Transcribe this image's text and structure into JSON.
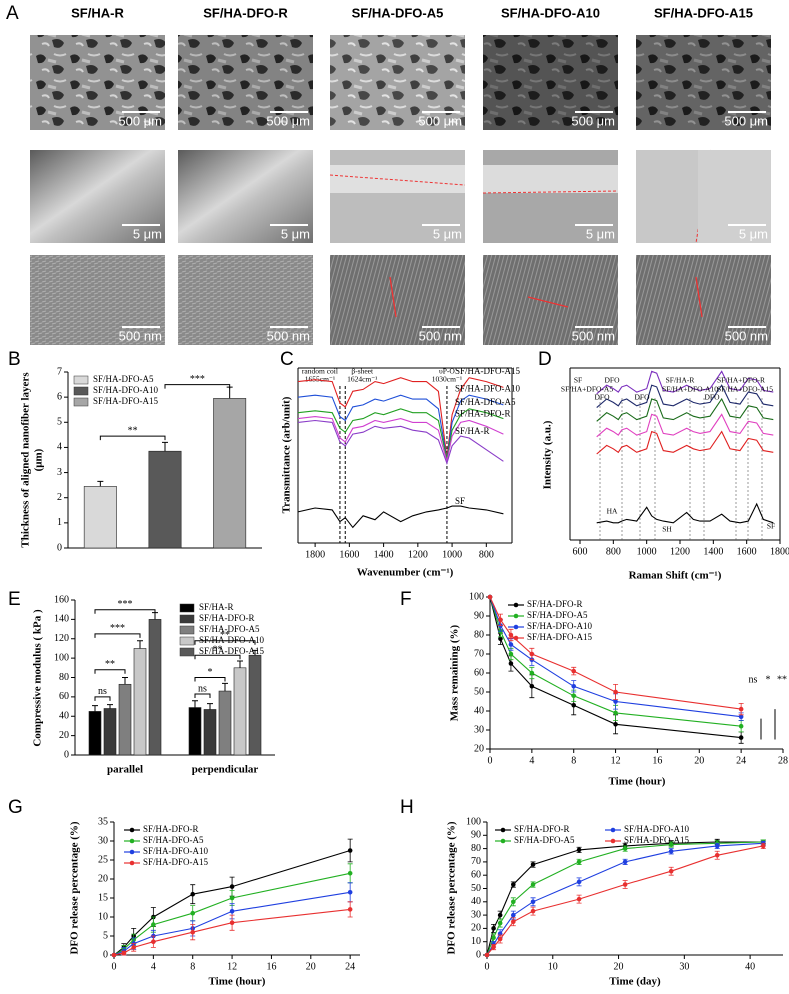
{
  "panel_a": {
    "label": "A",
    "columns": [
      "SF/HA-R",
      "SF/HA-DFO-R",
      "SF/HA-DFO-A5",
      "SF/HA-DFO-A10",
      "SF/HA-DFO-A15"
    ],
    "scale_bars": [
      [
        "500 μm",
        "500 μm",
        "500 μm",
        "500 μm",
        "500 μm"
      ],
      [
        "5 μm",
        "5 μm",
        "5 μm",
        "5 μm",
        "5 μm"
      ],
      [
        "500 nm",
        "500 nm",
        "500 nm",
        "500 nm",
        "500 nm"
      ]
    ]
  },
  "chart_data": [
    {
      "type": "bar",
      "panel_label": "B",
      "y_label": [
        "Thickness of aligned nanofiber layers",
        "(μm)"
      ],
      "categories": [
        "SF/HA-DFO-A5",
        "SF/HA-DFO-A10",
        "SF/HA-DFO-A15"
      ],
      "values": [
        2.45,
        3.85,
        5.95
      ],
      "errors": [
        0.2,
        0.35,
        0.45
      ],
      "colors": [
        "#d9d9d9",
        "#595959",
        "#a6a6a6"
      ],
      "ylim": [
        0,
        7
      ],
      "yticks": [
        0,
        1,
        2,
        3,
        4,
        5,
        6,
        7
      ],
      "legend": "upper left",
      "annotations": [
        "**",
        "***"
      ]
    },
    {
      "type": "line",
      "panel_label": "C",
      "x_label": "Wavenumber (cm⁻¹)",
      "y_label": "Transmittance (arb/unit)",
      "x": [
        1900,
        1800,
        1700,
        1655,
        1624,
        1580,
        1520,
        1450,
        1400,
        1300,
        1230,
        1150,
        1080,
        1030,
        1000,
        950,
        900,
        800,
        700
      ],
      "xlim": [
        1900,
        650
      ],
      "xticks": [
        1800,
        1600,
        1400,
        1200,
        1000,
        800
      ],
      "ylim": [
        0,
        9
      ],
      "legend": "inline",
      "reference_lines": [
        {
          "x": 1655,
          "lines": [
            "random coil",
            "1655cm⁻¹"
          ]
        },
        {
          "x": 1624,
          "lines": [
            "β-sheet",
            "1624cm⁻¹"
          ]
        },
        {
          "x": 1030,
          "lines": [
            "υP-O",
            "1030cm⁻¹"
          ]
        }
      ],
      "series": [
        {
          "name": "SF/HA-DFO-A15",
          "color": "#e02020",
          "values": [
            8.3,
            8.4,
            8.3,
            7.2,
            7.0,
            7.8,
            7.9,
            8.3,
            8.2,
            8.5,
            8.3,
            8.3,
            7.8,
            4.4,
            6.6,
            7.9,
            8.5,
            8.3,
            8.0
          ]
        },
        {
          "name": "SF/HA-DFO-A10",
          "color": "#1f4fd8",
          "values": [
            7.5,
            7.6,
            7.5,
            6.5,
            6.3,
            7.0,
            7.1,
            7.4,
            7.3,
            7.6,
            7.4,
            7.4,
            6.9,
            4.3,
            6.2,
            7.3,
            7.6,
            7.4,
            7.1
          ]
        },
        {
          "name": "SF/HA-DFO-A5",
          "color": "#22a022",
          "values": [
            6.7,
            6.8,
            6.7,
            5.9,
            5.7,
            6.3,
            6.4,
            6.7,
            6.6,
            6.9,
            6.7,
            6.7,
            6.3,
            4.3,
            5.8,
            6.6,
            6.9,
            6.7,
            6.4
          ]
        },
        {
          "name": "SF/HA-DFO-R",
          "color": "#d040d0",
          "values": [
            6.4,
            6.5,
            6.4,
            5.4,
            5.2,
            5.9,
            6.0,
            6.3,
            6.2,
            6.4,
            6.2,
            6.2,
            5.8,
            4.2,
            5.5,
            6.2,
            6.3,
            6.0,
            5.6
          ]
        },
        {
          "name": "SF/HA-R",
          "color": "#8a3cc8",
          "values": [
            6.2,
            6.3,
            6.2,
            5.2,
            5.0,
            5.6,
            5.7,
            6.0,
            5.9,
            6.0,
            5.8,
            5.7,
            5.3,
            4.1,
            5.0,
            5.5,
            5.4,
            4.8,
            4.2
          ]
        },
        {
          "name": "SF",
          "color": "#000000",
          "values": [
            1.6,
            1.8,
            1.7,
            1.1,
            1.3,
            0.8,
            1.4,
            1.2,
            1.6,
            1.1,
            1.4,
            1.6,
            1.7,
            1.8,
            1.9,
            1.9,
            1.8,
            1.7,
            1.5
          ]
        }
      ]
    },
    {
      "type": "line",
      "panel_label": "D",
      "x_label": "Raman Shift (cm⁻¹)",
      "y_label": "Intensity (a.u.)",
      "x": [
        700,
        760,
        800,
        830,
        850,
        880,
        940,
        1000,
        1030,
        1060,
        1100,
        1160,
        1240,
        1280,
        1320,
        1380,
        1450,
        1500,
        1560,
        1610,
        1660,
        1700,
        1760
      ],
      "xlim": [
        540,
        1800
      ],
      "xticks": [
        600,
        800,
        1000,
        1200,
        1400,
        1600,
        1800
      ],
      "ylim": [
        0,
        10
      ],
      "annotations": [
        "SF",
        "DFO",
        "SF/HA+DFO-A5",
        "SF/HA-R",
        "SF/HA+DFO-A10",
        "SF/HA+DFO-R",
        "SF/HA+DFO-A15",
        "DFO",
        "DFO",
        "DFO",
        "HA",
        "SH",
        "SF"
      ],
      "series": [
        {
          "color": "#7b2fbe",
          "values": [
            8.5,
            9.0,
            8.8,
            8.6,
            8.9,
            9.0,
            8.6,
            8.8,
            9.8,
            9.7,
            8.7,
            8.6,
            9.0,
            8.8,
            8.7,
            8.8,
            9.8,
            8.8,
            8.7,
            9.4,
            9.3,
            8.7,
            8.6
          ]
        },
        {
          "color": "#1f2a6b",
          "values": [
            7.7,
            8.2,
            8.0,
            7.8,
            8.1,
            8.2,
            7.8,
            8.0,
            9.0,
            8.9,
            7.9,
            7.8,
            8.2,
            8.0,
            7.9,
            8.0,
            9.0,
            8.0,
            7.9,
            8.6,
            8.5,
            7.9,
            7.8
          ]
        },
        {
          "color": "#1a6b1a",
          "values": [
            6.9,
            7.4,
            7.2,
            7.0,
            7.3,
            7.4,
            7.0,
            7.2,
            8.2,
            8.1,
            7.1,
            7.0,
            7.4,
            7.2,
            7.1,
            7.2,
            8.2,
            7.2,
            7.1,
            7.8,
            7.7,
            7.1,
            7.0
          ]
        },
        {
          "color": "#e040c0",
          "values": [
            6.0,
            6.5,
            6.3,
            6.1,
            6.4,
            6.5,
            6.1,
            6.3,
            7.3,
            7.2,
            6.2,
            6.1,
            6.5,
            6.3,
            6.2,
            6.3,
            7.3,
            6.3,
            6.2,
            6.9,
            6.8,
            6.2,
            6.1
          ]
        },
        {
          "color": "#e02020",
          "values": [
            5.0,
            5.5,
            5.3,
            5.1,
            5.4,
            5.5,
            5.1,
            5.3,
            6.3,
            6.2,
            5.2,
            5.1,
            5.5,
            5.3,
            5.2,
            5.3,
            6.3,
            5.3,
            5.2,
            5.9,
            5.8,
            5.2,
            5.1
          ]
        },
        {
          "color": "#000000",
          "values": [
            1.0,
            1.1,
            1.0,
            1.0,
            1.1,
            1.2,
            1.1,
            1.9,
            1.4,
            1.2,
            1.1,
            1.0,
            1.6,
            1.2,
            1.1,
            1.1,
            1.5,
            1.1,
            1.0,
            1.1,
            2.1,
            1.2,
            1.0
          ]
        }
      ]
    },
    {
      "type": "bar",
      "panel_label": "E",
      "y_label": "Compressive modulus ( kPa )",
      "categories": [
        "parallel",
        "perpendicular"
      ],
      "ylim": [
        0,
        160
      ],
      "yticks": [
        0,
        20,
        40,
        60,
        80,
        100,
        120,
        140,
        160
      ],
      "legend": "upper right",
      "annotations": [
        "ns",
        "**",
        "***",
        "***",
        "ns",
        "*",
        "**",
        "**"
      ],
      "series": [
        {
          "name": "SF/HA-R",
          "color": "#000000",
          "values": [
            45,
            49
          ],
          "errors": [
            6,
            7
          ]
        },
        {
          "name": "SF/HA-DFO-R",
          "color": "#3a3a3a",
          "values": [
            48,
            47
          ],
          "errors": [
            4,
            6
          ]
        },
        {
          "name": "SF/HA-DFO-A5",
          "color": "#7f7f7f",
          "values": [
            73,
            66
          ],
          "errors": [
            7,
            8
          ]
        },
        {
          "name": "SF/HA-DFO-A10",
          "color": "#c8c8c8",
          "values": [
            110,
            90
          ],
          "errors": [
            8,
            7
          ]
        },
        {
          "name": "SF/HA-DFO-A15",
          "color": "#595959",
          "values": [
            140,
            103
          ],
          "errors": [
            7,
            5
          ]
        }
      ]
    },
    {
      "type": "line",
      "panel_label": "F",
      "x_label": "Time (hour)",
      "y_label": "Mass remaining (%)",
      "markers": true,
      "x": [
        0,
        1,
        2,
        4,
        8,
        12,
        24
      ],
      "xlim": [
        0,
        28
      ],
      "xticks": [
        0,
        4,
        8,
        12,
        16,
        20,
        24,
        28
      ],
      "ylim": [
        20,
        100
      ],
      "yticks": [
        20,
        30,
        40,
        50,
        60,
        70,
        80,
        90,
        100
      ],
      "legend": "upper left",
      "annotations": [
        "ns",
        "*",
        "**"
      ],
      "series": [
        {
          "name": "SF/HA-DFO-R",
          "color": "#000000",
          "values": [
            100,
            78,
            65,
            53,
            43,
            33,
            26
          ],
          "errors": [
            0,
            3,
            4,
            6,
            5,
            5,
            3
          ]
        },
        {
          "name": "SF/HA-DFO-A5",
          "color": "#22b022",
          "values": [
            100,
            82,
            70,
            60,
            48,
            39,
            32
          ],
          "errors": [
            0,
            3,
            3,
            3,
            3,
            4,
            3
          ]
        },
        {
          "name": "SF/HA-DFO-A10",
          "color": "#1f3fe0",
          "values": [
            100,
            85,
            75,
            67,
            53,
            45,
            37
          ],
          "errors": [
            0,
            3,
            3,
            3,
            3,
            4,
            2
          ]
        },
        {
          "name": "SF/HA-DFO-A15",
          "color": "#e83030",
          "values": [
            100,
            88,
            80,
            70,
            61,
            50,
            41
          ],
          "errors": [
            0,
            3,
            3,
            3,
            2,
            4,
            3
          ]
        }
      ]
    },
    {
      "type": "line",
      "panel_label": "G",
      "x_label": "Time (hour)",
      "y_label": "DFO release percentage (%)",
      "markers": true,
      "x": [
        0,
        1,
        2,
        4,
        8,
        12,
        24
      ],
      "xlim": [
        0,
        25
      ],
      "xticks": [
        0,
        4,
        8,
        12,
        16,
        20,
        24
      ],
      "ylim": [
        0,
        35
      ],
      "yticks": [
        0,
        5,
        10,
        15,
        20,
        25,
        30,
        35
      ],
      "legend": "upper left",
      "series": [
        {
          "name": "SF/HA-DFO-R",
          "color": "#000000",
          "values": [
            0,
            2,
            5,
            10,
            16,
            18,
            27.5
          ],
          "errors": [
            0,
            1,
            2,
            2.5,
            2.5,
            2.5,
            3
          ]
        },
        {
          "name": "SF/HA-DFO-A5",
          "color": "#22b022",
          "values": [
            0,
            1.5,
            4,
            8,
            11,
            15,
            21.5
          ],
          "errors": [
            0,
            1,
            1.5,
            2,
            2,
            2,
            2.5
          ]
        },
        {
          "name": "SF/HA-DFO-A10",
          "color": "#1f3fe0",
          "values": [
            0,
            1,
            3,
            5,
            7,
            11.5,
            16.5
          ],
          "errors": [
            0,
            1,
            1.5,
            1.5,
            2,
            2,
            2.5
          ]
        },
        {
          "name": "SF/HA-DFO-A15",
          "color": "#e83030",
          "values": [
            0,
            0.5,
            2,
            3.5,
            6,
            8.5,
            12
          ],
          "errors": [
            0,
            0.5,
            1,
            1.5,
            2,
            2,
            2
          ]
        }
      ]
    },
    {
      "type": "line",
      "panel_label": "H",
      "x_label": "Time (day)",
      "y_label": "DFO release percentage (%)",
      "markers": true,
      "x": [
        0,
        1,
        2,
        4,
        7,
        14,
        21,
        28,
        35,
        42
      ],
      "xlim": [
        0,
        45
      ],
      "xticks": [
        0,
        10,
        20,
        30,
        40
      ],
      "ylim": [
        0,
        100
      ],
      "yticks": [
        0,
        10,
        20,
        30,
        40,
        50,
        60,
        70,
        80,
        90,
        100
      ],
      "legend": "upper left",
      "series": [
        {
          "name": "SF/HA-DFO-R",
          "color": "#000000",
          "values": [
            0,
            20,
            30,
            53,
            68,
            79,
            82,
            84,
            85,
            85
          ],
          "errors": [
            0,
            3,
            3,
            2,
            2,
            2,
            2,
            2,
            2,
            1.5
          ]
        },
        {
          "name": "SF/HA-DFO-A5",
          "color": "#22b022",
          "values": [
            0,
            13,
            24,
            40,
            53,
            70,
            80,
            83,
            84,
            85
          ],
          "errors": [
            0,
            3,
            3,
            3,
            2,
            2,
            2,
            2,
            2,
            1.5
          ]
        },
        {
          "name": "SF/HA-DFO-A10",
          "color": "#1f3fe0",
          "values": [
            0,
            8,
            16,
            30,
            40,
            55,
            70,
            78,
            82,
            84
          ],
          "errors": [
            0,
            2,
            3,
            3,
            3,
            3,
            2,
            2,
            2,
            1.5
          ]
        },
        {
          "name": "SF/HA-DFO-A15",
          "color": "#e83030",
          "values": [
            0,
            6,
            12,
            25,
            33,
            42,
            53,
            63,
            75,
            82
          ],
          "errors": [
            0,
            2,
            3,
            3,
            3,
            3,
            3,
            3,
            3,
            2
          ]
        }
      ]
    }
  ]
}
